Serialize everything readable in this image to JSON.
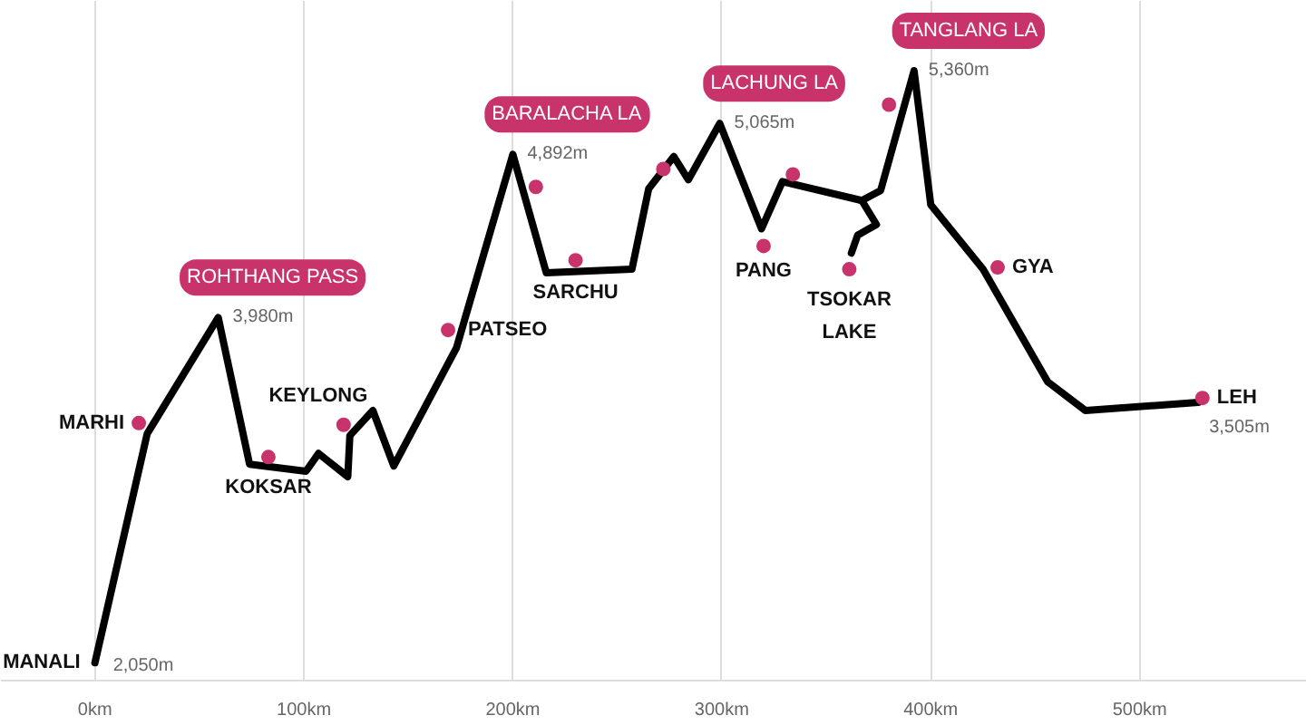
{
  "chart_data": {
    "type": "line",
    "xlim": [
      -45,
      580
    ],
    "ylim": [
      1950,
      5750
    ],
    "xticks": [
      {
        "value": 0,
        "label": "0km"
      },
      {
        "value": 100,
        "label": "100km"
      },
      {
        "value": 200,
        "label": "200km"
      },
      {
        "value": 300,
        "label": "300km"
      },
      {
        "value": 400,
        "label": "400km"
      },
      {
        "value": 500,
        "label": "500km"
      }
    ],
    "tick_labels": "x",
    "grid": "x",
    "series": [
      {
        "color": "#000000",
        "x": [
          0,
          25,
          59,
          74,
          101,
          107,
          121,
          122,
          133,
          143,
          173,
          200,
          216,
          257,
          265,
          277,
          284,
          299,
          319,
          329,
          367,
          376,
          392,
          400,
          425,
          456,
          474,
          528
        ],
        "values": [
          2050,
          3330,
          3980,
          3160,
          3120,
          3220,
          3090,
          3320,
          3460,
          3150,
          3810,
          4892,
          4230,
          4250,
          4700,
          4880,
          4750,
          5065,
          4476,
          4740,
          4634,
          4690,
          5360,
          4610,
          4250,
          3620,
          3460,
          3505
        ],
        "value_labels": [
          "2,050m",
          null,
          "3,980m",
          null,
          null,
          null,
          null,
          null,
          null,
          null,
          null,
          "4,892m",
          null,
          null,
          null,
          null,
          null,
          "5,065m",
          null,
          null,
          null,
          null,
          "5,360m",
          null,
          null,
          null,
          null,
          "3,505m"
        ]
      },
      {
        "color": "#000000",
        "x": [
          367,
          374,
          365,
          362
        ],
        "values": [
          4634,
          4500,
          4440,
          4340
        ]
      },
      {
        "type": "scatter",
        "color": "#c8336c",
        "marker": "circle",
        "x": [
          21,
          83,
          119,
          169,
          211,
          230,
          272,
          320,
          334,
          361,
          380,
          432,
          530
        ],
        "values": [
          3390,
          3200,
          3380,
          3910,
          4710,
          4300,
          4810,
          4380,
          4780,
          4250,
          5170,
          4260,
          3530
        ]
      }
    ],
    "annotations": [
      {
        "text": "MANALI",
        "x": 0,
        "y": 2050
      },
      {
        "text": "MARHI",
        "x": 21,
        "y": 3390
      },
      {
        "text": "KOKSAR",
        "x": 83,
        "y": 3200
      },
      {
        "text": "KEYLONG",
        "x": 119,
        "y": 3380
      },
      {
        "text": "PATSEO",
        "x": 169,
        "y": 3910
      },
      {
        "text": "SARCHU",
        "x": 230,
        "y": 4300
      },
      {
        "text": "PANG",
        "x": 320,
        "y": 4380
      },
      {
        "text": "TSOKAR LAKE",
        "x": 361,
        "y": 4250
      },
      {
        "text": "GYA",
        "x": 432,
        "y": 4260
      },
      {
        "text": "LEH",
        "x": 530,
        "y": 3530
      },
      {
        "text": "ROHTHANG PASS",
        "x": 59,
        "y": 3980
      },
      {
        "text": "BARALACHA LA",
        "x": 200,
        "y": 4892
      },
      {
        "text": "LACHUNG LA",
        "x": 299,
        "y": 5065
      },
      {
        "text": "TANGLANG LA",
        "x": 392,
        "y": 5360
      }
    ]
  }
}
